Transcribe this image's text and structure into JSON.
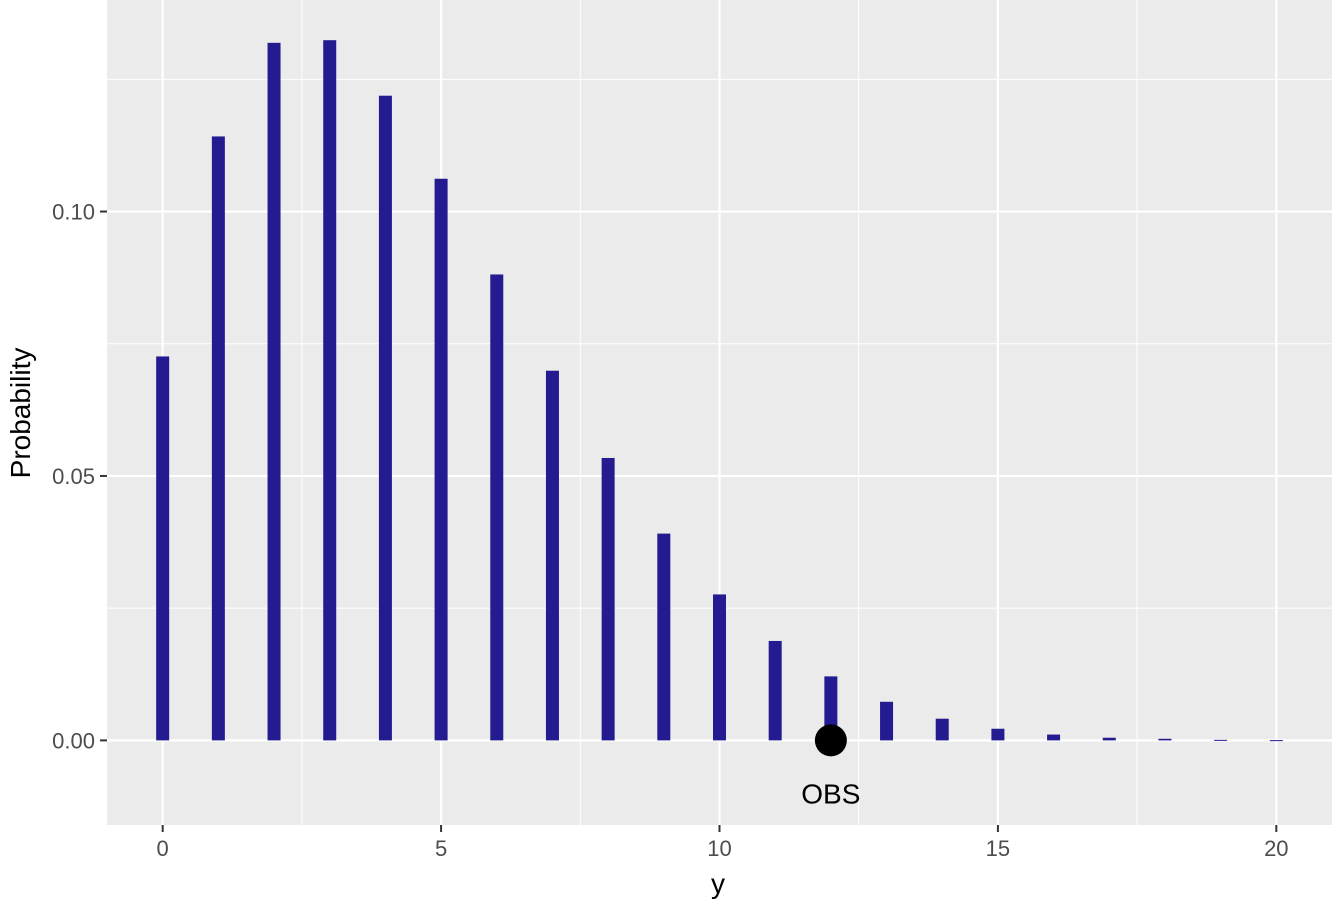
{
  "chart_data": {
    "type": "bar",
    "x": [
      0,
      1,
      2,
      3,
      4,
      5,
      6,
      7,
      8,
      9,
      10,
      11,
      12,
      13,
      14,
      15,
      16,
      17,
      18,
      19,
      20
    ],
    "values": [
      0.0726,
      0.1142,
      0.1319,
      0.1324,
      0.1219,
      0.1062,
      0.0881,
      0.0699,
      0.0534,
      0.0391,
      0.0276,
      0.0188,
      0.0121,
      0.0073,
      0.0041,
      0.0022,
      0.0011,
      0.0005,
      0.0003,
      0.0001,
      5e-05
    ],
    "xlabel": "y",
    "ylabel": "Probability",
    "xlim": [
      -1,
      21
    ],
    "ylim": [
      -0.016,
      0.14
    ],
    "x_ticks": [
      0,
      5,
      10,
      15,
      20
    ],
    "x_tick_labels": [
      "0",
      "5",
      "10",
      "15",
      "20"
    ],
    "y_ticks": [
      0,
      0.05,
      0.1
    ],
    "y_tick_labels": [
      "0.00",
      "0.05",
      "0.10"
    ],
    "bar_color": "#231b8f",
    "panel_color": "#ebebeb",
    "grid": true,
    "observed": {
      "x": 12,
      "y": 0,
      "label": "OBS",
      "color": "#000000"
    }
  }
}
